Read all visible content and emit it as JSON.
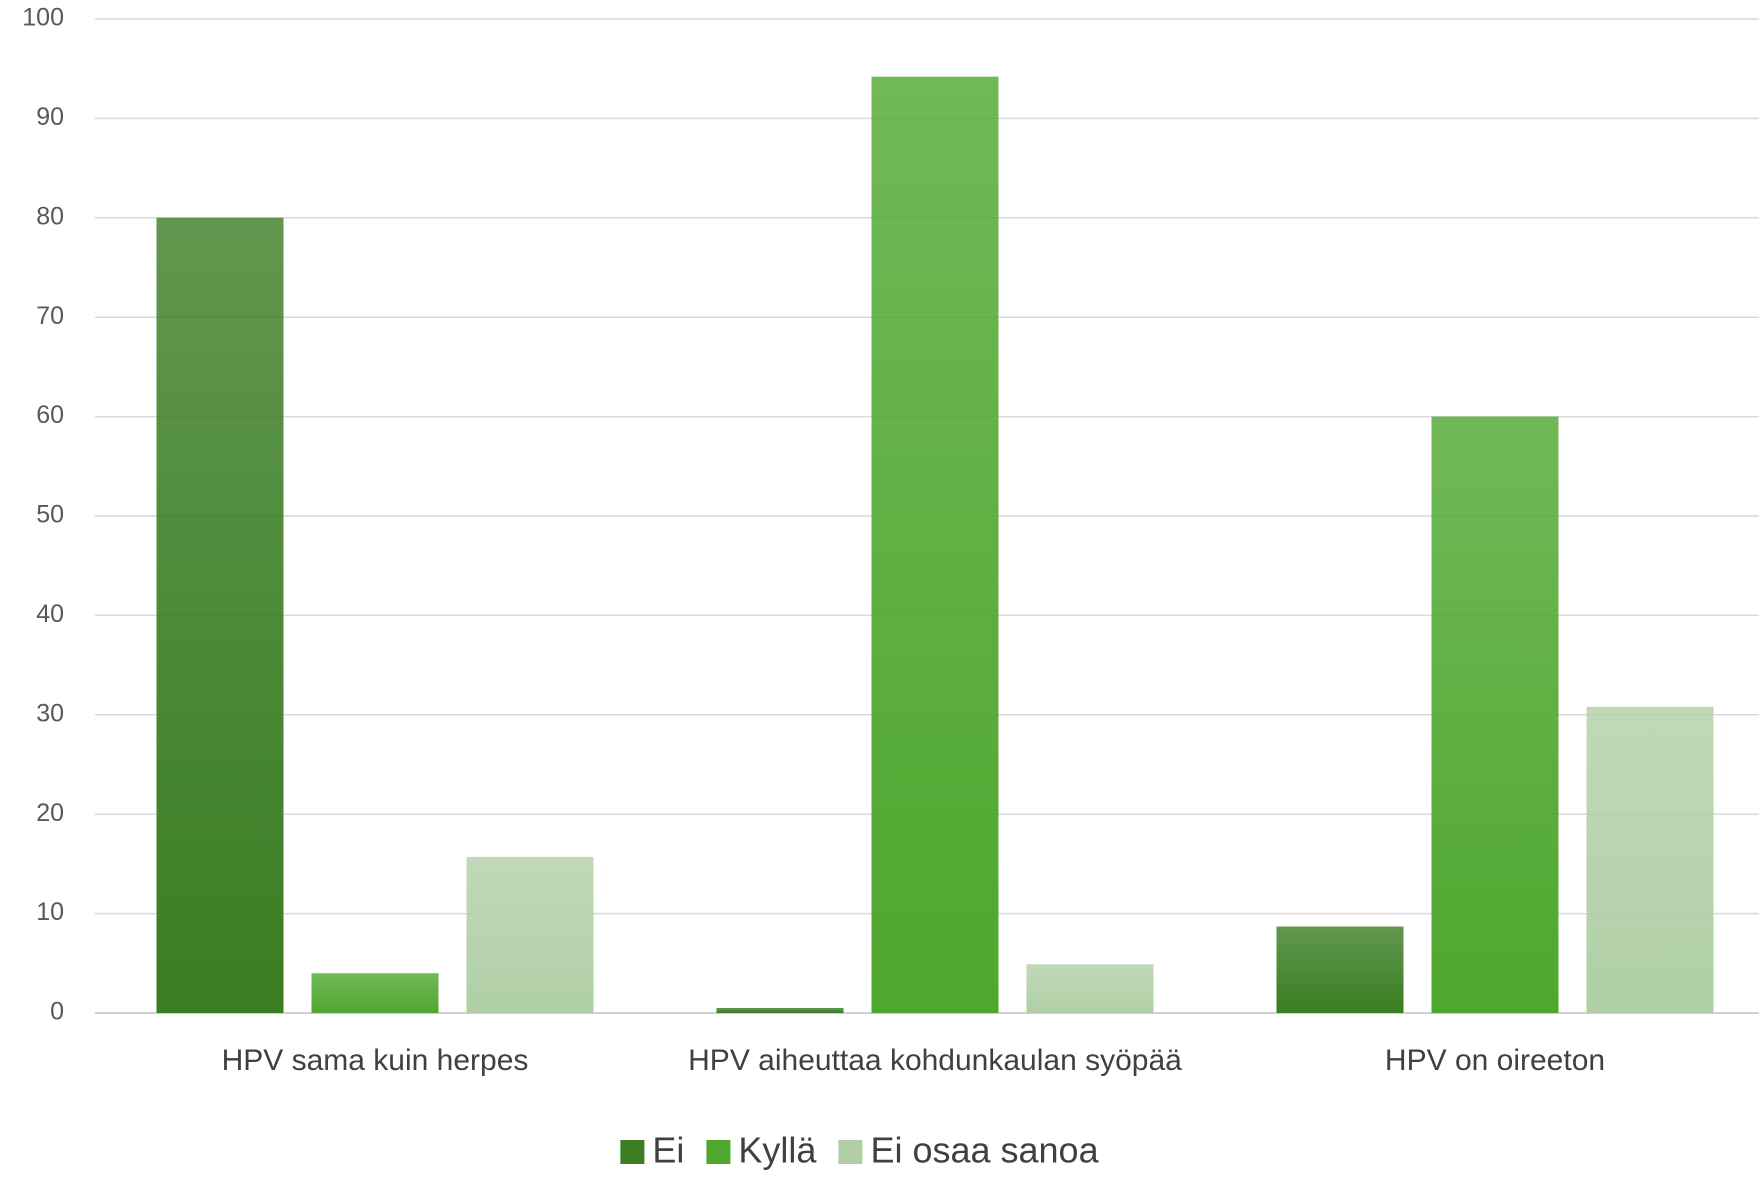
{
  "chart_data": {
    "type": "bar",
    "categories": [
      "HPV sama kuin herpes",
      "HPV aiheuttaa kohdunkaulan syöpää",
      "HPV on oireeton"
    ],
    "series": [
      {
        "name": "Ei",
        "color": "#3a7d22",
        "values": [
          80,
          0.5,
          8.7
        ]
      },
      {
        "name": "Kyllä",
        "color": "#4ea72e",
        "values": [
          4,
          94.2,
          60
        ]
      },
      {
        "name": "Ei osaa sanoa",
        "color": "#b0cfa6",
        "values": [
          15.7,
          4.9,
          30.8
        ]
      }
    ],
    "ylim": [
      0,
      100
    ],
    "yticks": [
      0,
      10,
      20,
      30,
      40,
      50,
      60,
      70,
      80,
      90,
      100
    ],
    "grid": true,
    "legend": "bottom"
  }
}
